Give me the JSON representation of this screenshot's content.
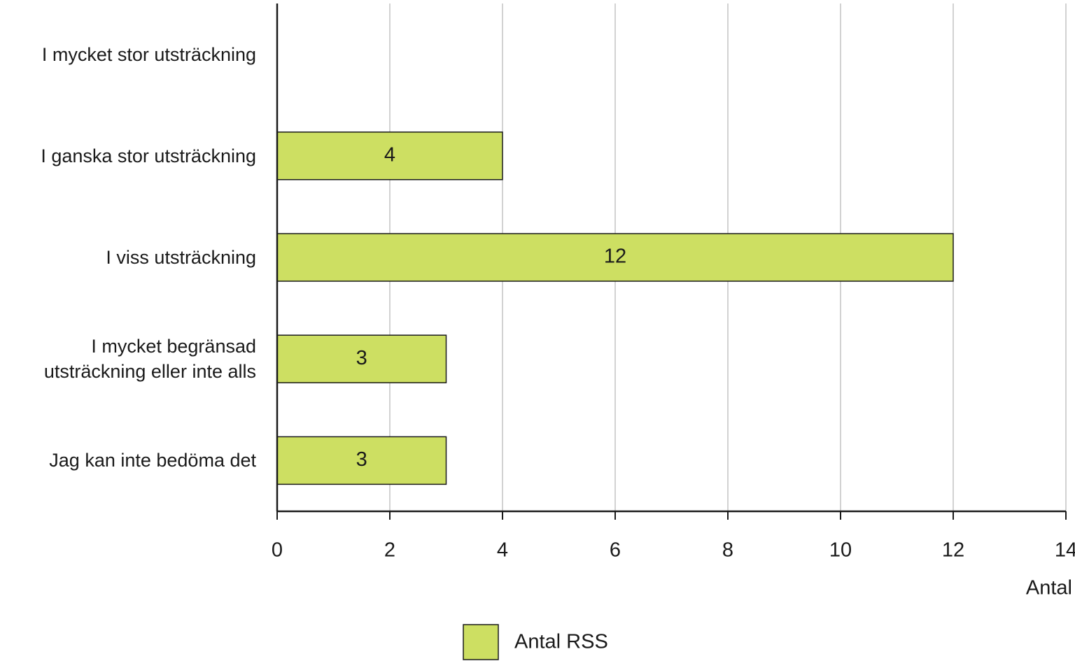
{
  "chart_data": {
    "type": "bar",
    "orientation": "horizontal",
    "categories": [
      "I mycket stor utsträckning",
      "I ganska stor utsträckning",
      "I viss utsträckning",
      "I mycket begränsad utsträckning eller inte alls",
      "Jag kan inte bedöma det"
    ],
    "series": [
      {
        "name": "Antal RSS",
        "color": "#cddf62",
        "values": [
          null,
          4,
          12,
          3,
          3
        ]
      }
    ],
    "x_label": "Antal",
    "xlim": [
      0,
      14
    ],
    "xticks": [
      0,
      2,
      4,
      6,
      8,
      10,
      12,
      14
    ],
    "grid": true,
    "legend": "bottom"
  }
}
